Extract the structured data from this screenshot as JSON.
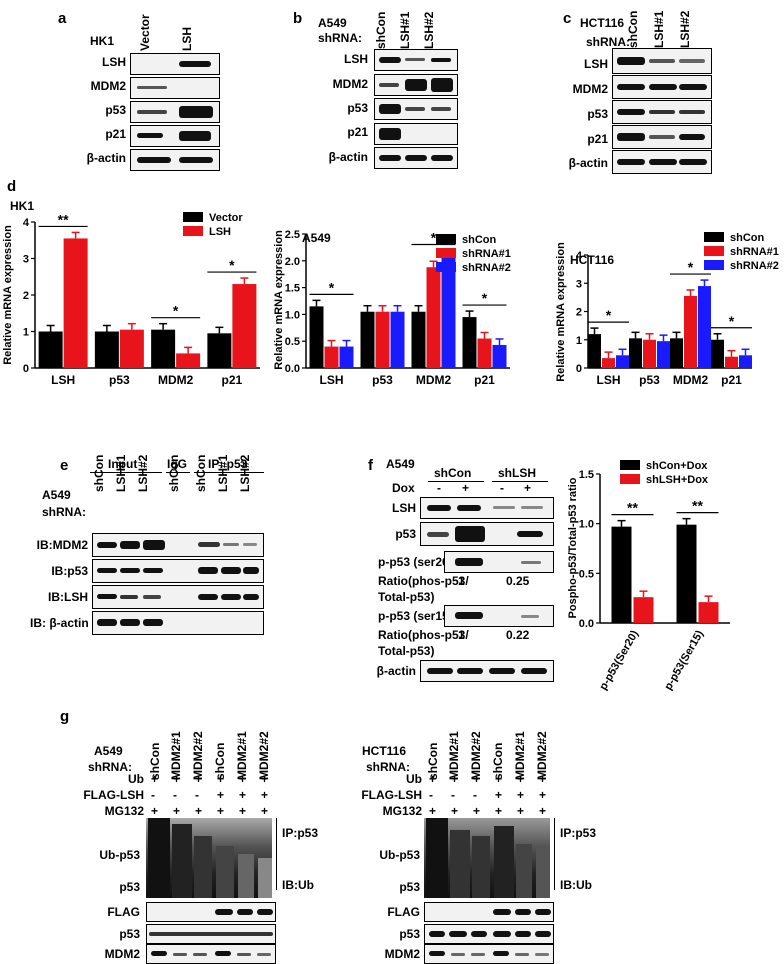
{
  "panel_letters": {
    "a": "a",
    "b": "b",
    "c": "c",
    "d": "d",
    "e": "e",
    "f": "f",
    "g": "g"
  },
  "panel_a": {
    "cell": "HK1",
    "lanes": [
      "Vector",
      "LSH"
    ],
    "rows": [
      "LSH",
      "MDM2",
      "p53",
      "p21",
      "β-actin"
    ]
  },
  "panel_b": {
    "cell": "A549",
    "shrna": "shRNA:",
    "lanes": [
      "shCon",
      "LSH#1",
      "LSH#2"
    ],
    "rows": [
      "LSH",
      "MDM2",
      "p53",
      "p21",
      "β-actin"
    ]
  },
  "panel_c": {
    "cell": "HCT116",
    "shrna": "shRNA:",
    "lanes": [
      "shCon",
      "LSH#1",
      "LSH#2"
    ],
    "rows": [
      "LSH",
      "MDM2",
      "p53",
      "p21",
      "β-actin"
    ]
  },
  "panel_d_cells": {
    "hk1": "HK1",
    "a549": "A549",
    "hct116": "HCT116"
  },
  "panel_e": {
    "groups": [
      "Input",
      "IgG",
      "IP: p53"
    ],
    "cell": "A549",
    "shrna": "shRNA:",
    "lanes": [
      "shCon",
      "LSH#1",
      "LSH#2",
      "shCon",
      "shCon",
      "LSH#1",
      "LSH#2"
    ],
    "rows": [
      "IB:MDM2",
      "IB:p53",
      "IB:LSH",
      "IB: β-actin"
    ]
  },
  "panel_f": {
    "cell": "A549",
    "groups": [
      "shCon",
      "shLSH"
    ],
    "dox_label": "Dox",
    "dox": [
      "-",
      "+",
      "-",
      "+"
    ],
    "rows": [
      "LSH",
      "p53",
      "p-p53 (ser20)",
      "p-p53 (ser15)",
      "β-actin"
    ],
    "ratio_label_1": "Ratio(phos-p53/",
    "ratio_label_2": "Total-p53)",
    "ratio_ser20": [
      "1",
      "0.25"
    ],
    "ratio_ser15": [
      "1",
      "0.22"
    ]
  },
  "panel_g_left": {
    "cell": "A549",
    "shrna": "shRNA:",
    "lanes": [
      "shCon",
      "MDM2#1",
      "MDM2#2",
      "shCon",
      "MDM2#1",
      "MDM2#2"
    ],
    "conditions": [
      {
        "name": "Ub",
        "vals": [
          "+",
          "+",
          "+",
          "+",
          "+",
          "+"
        ]
      },
      {
        "name": "FLAG-LSH",
        "vals": [
          "-",
          "-",
          "-",
          "+",
          "+",
          "+"
        ]
      },
      {
        "name": "MG132",
        "vals": [
          "+",
          "+",
          "+",
          "+",
          "+",
          "+"
        ]
      }
    ],
    "ub_label": "Ub-p53",
    "p53_label": "p53",
    "ip": "IP:p53",
    "ib": "IB:Ub",
    "rows": [
      "FLAG",
      "p53",
      "MDM2"
    ]
  },
  "panel_g_right": {
    "cell": "HCT116",
    "shrna": "shRNA:",
    "lanes": [
      "shCon",
      "MDM2#1",
      "MDM2#2",
      "shCon",
      "MDM2#1",
      "MDM2#2"
    ],
    "conditions": [
      {
        "name": "Ub",
        "vals": [
          "+",
          "+",
          "+",
          "+",
          "+",
          "+"
        ]
      },
      {
        "name": "FLAG-LSH",
        "vals": [
          "-",
          "-",
          "-",
          "+",
          "+",
          "+"
        ]
      },
      {
        "name": "MG132",
        "vals": [
          "+",
          "+",
          "+",
          "+",
          "+",
          "+"
        ]
      }
    ],
    "ub_label": "Ub-p53",
    "p53_label": "p53",
    "ip": "IP:p53",
    "ib": "IB:Ub",
    "rows": [
      "FLAG",
      "p53",
      "MDM2"
    ]
  },
  "chart_data": [
    {
      "type": "bar",
      "title": "HK1",
      "ylabel": "Relative mRNA expression",
      "ylim": [
        0,
        4
      ],
      "yticks": [
        0,
        1,
        2,
        3,
        4
      ],
      "categories": [
        "LSH",
        "p53",
        "MDM2",
        "p21"
      ],
      "series": [
        {
          "name": "Vector",
          "color": "#000000",
          "values": [
            1.0,
            1.0,
            1.05,
            0.95
          ]
        },
        {
          "name": "LSH",
          "color": "#e8141b",
          "values": [
            3.55,
            1.05,
            0.4,
            2.3
          ]
        }
      ],
      "significance": [
        {
          "label": "**",
          "category": 0
        },
        {
          "label": "*",
          "category": 2
        },
        {
          "label": "*",
          "category": 3
        }
      ],
      "legend": "top-right"
    },
    {
      "type": "bar",
      "title": "A549",
      "ylabel": "Relative mRNA expression",
      "ylim": [
        0,
        2.5
      ],
      "yticks": [
        0.0,
        0.5,
        1.0,
        1.5,
        2.0,
        2.5
      ],
      "categories": [
        "LSH",
        "p53",
        "MDM2",
        "p21"
      ],
      "series": [
        {
          "name": "shCon",
          "color": "#000000",
          "values": [
            1.15,
            1.05,
            1.05,
            0.95
          ]
        },
        {
          "name": "shRNA#1",
          "color": "#e8141b",
          "values": [
            0.4,
            1.05,
            1.88,
            0.55
          ]
        },
        {
          "name": "shRNA#2",
          "color": "#1a1aff",
          "values": [
            0.4,
            1.05,
            2.08,
            0.43
          ]
        }
      ],
      "significance": [
        {
          "label": "*",
          "category": 0
        },
        {
          "label": "*",
          "category": 2
        },
        {
          "label": "*",
          "category": 3
        }
      ],
      "legend": "top-right"
    },
    {
      "type": "bar",
      "title": "HCT116",
      "ylabel": "Relative mRNA expression",
      "ylim": [
        0,
        4
      ],
      "yticks": [
        0,
        1,
        2,
        3,
        4
      ],
      "categories": [
        "LSH",
        "p53",
        "MDM2",
        "p21"
      ],
      "series": [
        {
          "name": "shCon",
          "color": "#000000",
          "values": [
            1.2,
            1.05,
            1.05,
            1.0
          ]
        },
        {
          "name": "shRNA#1",
          "color": "#e8141b",
          "values": [
            0.35,
            1.0,
            2.55,
            0.4
          ]
        },
        {
          "name": "shRNA#2",
          "color": "#1a1aff",
          "values": [
            0.45,
            0.95,
            2.9,
            0.45
          ]
        }
      ],
      "significance": [
        {
          "label": "*",
          "category": 0
        },
        {
          "label": "*",
          "category": 2
        },
        {
          "label": "*",
          "category": 3
        }
      ],
      "legend": "top-right"
    },
    {
      "type": "bar",
      "title": "",
      "ylabel": "Pospho-p53/Total-p53 ratio",
      "ylim": [
        0,
        1.5
      ],
      "yticks": [
        0.0,
        0.5,
        1.0,
        1.5
      ],
      "categories": [
        "p-p53(Ser20)",
        "p-p53(Ser15)"
      ],
      "series": [
        {
          "name": "shCon+Dox",
          "color": "#000000",
          "values": [
            0.97,
            0.99
          ]
        },
        {
          "name": "shLSH+Dox",
          "color": "#e8141b",
          "values": [
            0.26,
            0.21
          ]
        }
      ],
      "significance": [
        {
          "label": "**",
          "category": 0
        },
        {
          "label": "**",
          "category": 1
        }
      ],
      "legend": "top-right"
    }
  ]
}
